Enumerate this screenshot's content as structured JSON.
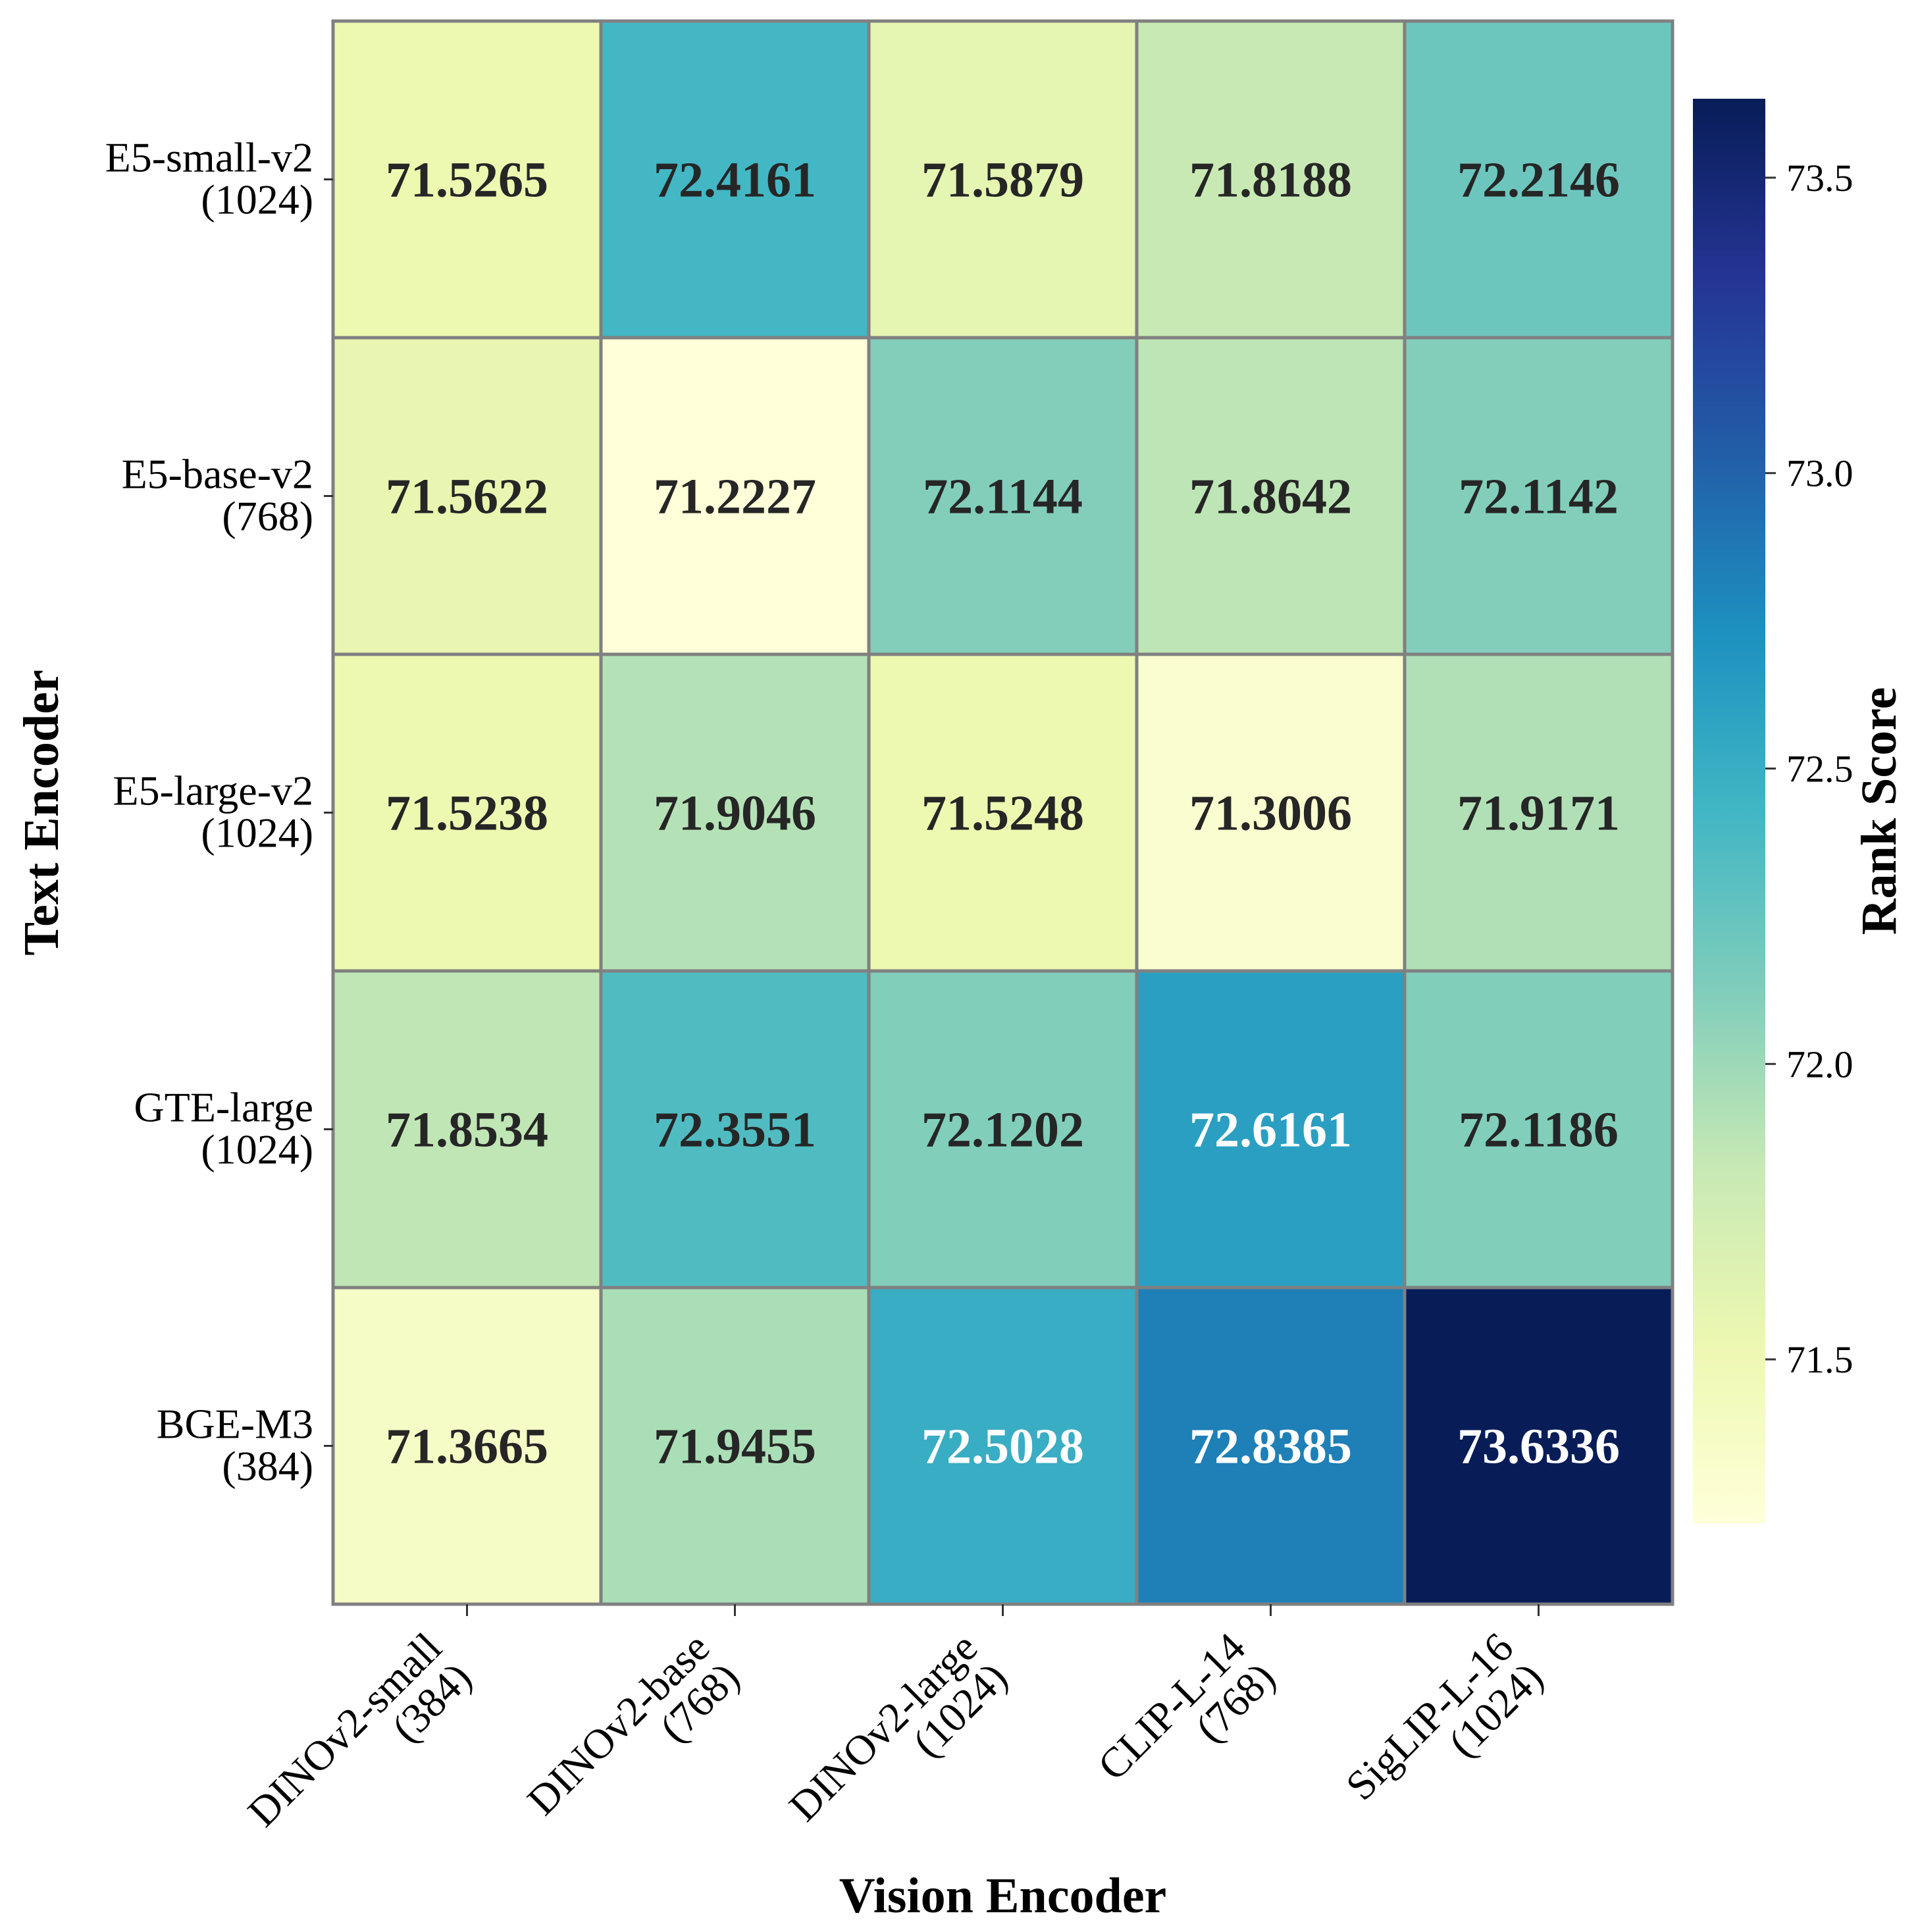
{
  "chart_data": {
    "type": "heatmap",
    "x_categories": [
      [
        "DINOv2-small",
        "(384)"
      ],
      [
        "DINOv2-base",
        "(768)"
      ],
      [
        "DINOv2-large",
        "(1024)"
      ],
      [
        "CLIP-L-14",
        "(768)"
      ],
      [
        "SigLIP-L-16",
        "(1024)"
      ]
    ],
    "y_categories": [
      [
        "E5-small-v2",
        "(1024)"
      ],
      [
        "E5-base-v2",
        "(768)"
      ],
      [
        "E5-large-v2",
        "(1024)"
      ],
      [
        "GTE-large",
        "(1024)"
      ],
      [
        "BGE-M3",
        "(384)"
      ]
    ],
    "values": [
      [
        71.5265,
        72.4161,
        71.5879,
        71.8188,
        72.2146
      ],
      [
        71.5622,
        71.2227,
        72.1144,
        71.8642,
        72.1142
      ],
      [
        71.5238,
        71.9046,
        71.5248,
        71.3006,
        71.9171
      ],
      [
        71.8534,
        72.3551,
        72.1202,
        72.6161,
        72.1186
      ],
      [
        71.3665,
        71.9455,
        72.5028,
        72.8385,
        73.6336
      ]
    ],
    "value_labels": [
      [
        "71.5265",
        "72.4161",
        "71.5879",
        "71.8188",
        "72.2146"
      ],
      [
        "71.5622",
        "71.2227",
        "72.1144",
        "71.8642",
        "72.1142"
      ],
      [
        "71.5238",
        "71.9046",
        "71.5248",
        "71.3006",
        "71.9171"
      ],
      [
        "71.8534",
        "72.3551",
        "72.1202",
        "72.6161",
        "72.1186"
      ],
      [
        "71.3665",
        "71.9455",
        "72.5028",
        "72.8385",
        "73.6336"
      ]
    ],
    "xlabel": "Vision Encoder",
    "ylabel": "Text Encoder",
    "colorbar": {
      "label": "Rank Score",
      "vmin": 71.2227,
      "vmax": 73.6336,
      "ticks": [
        71.5,
        72.0,
        72.5,
        73.0,
        73.5
      ],
      "tick_labels": [
        "71.5",
        "72.0",
        "72.5",
        "73.0",
        "73.5"
      ],
      "colormap": "YlGnBu",
      "colormap_stops": [
        "#ffffd9",
        "#edf8b1",
        "#c7e9b4",
        "#7fcdbb",
        "#41b6c4",
        "#1d91c0",
        "#225ea8",
        "#253494",
        "#081d58"
      ]
    },
    "annotation_dark_color": "#262626",
    "annotation_light_color": "#ffffff",
    "grid_color": "#808080"
  }
}
